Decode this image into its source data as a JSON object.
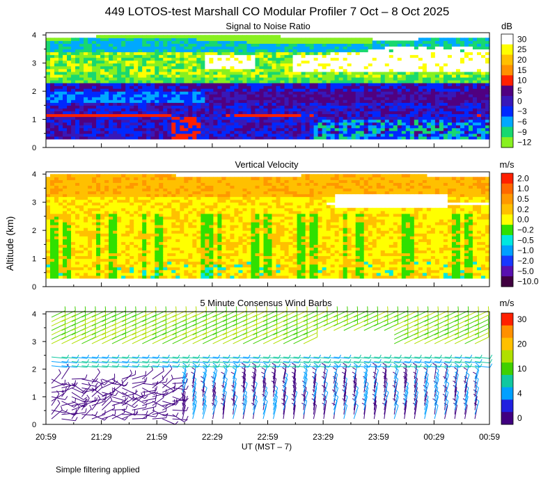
{
  "title": "449 LOTOS-test Marshall CO Modular Profiler  7 Oct –  8 Oct 2025",
  "ylabel": "Altitude (km)",
  "xlabel": "UT  (MST – 7)",
  "footnote": "Simple filtering applied",
  "x_ticks": [
    "20:59",
    "21:29",
    "21:59",
    "22:29",
    "22:59",
    "23:29",
    "23:59",
    "00:29",
    "00:59"
  ],
  "y_ticks": [
    "0",
    "1",
    "2",
    "3",
    "4"
  ],
  "chart_data": [
    {
      "type": "heatmap",
      "title": "Signal to Noise Ratio",
      "unit": "dB",
      "xlim": [
        "20:59",
        "00:59"
      ],
      "ylim": [
        0,
        4
      ],
      "colorbar": [
        {
          "label": "30",
          "color": "#ffffff"
        },
        {
          "label": "25",
          "color": "#ffff00"
        },
        {
          "label": "20",
          "color": "#ffc000"
        },
        {
          "label": "15",
          "color": "#ff9000"
        },
        {
          "label": "10",
          "color": "#ff2000"
        },
        {
          "label": "5",
          "color": "#500080"
        },
        {
          "label": "0",
          "color": "#3818b8"
        },
        {
          "label": "−3",
          "color": "#0028ff"
        },
        {
          "label": "−6",
          "color": "#00a8ff"
        },
        {
          "label": "−9",
          "color": "#18d870"
        },
        {
          "label": "−12",
          "color": "#88f020"
        }
      ]
    },
    {
      "type": "heatmap",
      "title": "Vertical Velocity",
      "unit": "m/s",
      "xlim": [
        "20:59",
        "00:59"
      ],
      "ylim": [
        0,
        4
      ],
      "colorbar": [
        {
          "label": "2.0",
          "color": "#ff2000"
        },
        {
          "label": "1.0",
          "color": "#ff6800"
        },
        {
          "label": "0.5",
          "color": "#ff9800"
        },
        {
          "label": "0.2",
          "color": "#ffc000"
        },
        {
          "label": "0.0",
          "color": "#ffff00"
        },
        {
          "label": "−0.2",
          "color": "#30e000"
        },
        {
          "label": "−0.5",
          "color": "#00e8e0"
        },
        {
          "label": "−1.0",
          "color": "#00a0ff"
        },
        {
          "label": "−2.0",
          "color": "#1838ff"
        },
        {
          "label": "−5.0",
          "color": "#5810b0"
        },
        {
          "label": "−10.0",
          "color": "#400040"
        }
      ]
    },
    {
      "type": "scatter",
      "title": "5 Minute Consensus Wind Barbs",
      "unit": "m/s",
      "xlim": [
        "20:59",
        "00:59"
      ],
      "ylim": [
        0,
        4
      ],
      "colorbar": [
        {
          "label": "30",
          "color": "#ff2000"
        },
        {
          "label": "",
          "color": "#ff9000"
        },
        {
          "label": "20",
          "color": "#ffc000"
        },
        {
          "label": "",
          "color": "#b0e000"
        },
        {
          "label": "10",
          "color": "#40d000"
        },
        {
          "label": "",
          "color": "#10c8a0"
        },
        {
          "label": "4",
          "color": "#00a0ff"
        },
        {
          "label": "",
          "color": "#2020e0"
        },
        {
          "label": "0",
          "color": "#400080"
        }
      ]
    }
  ]
}
